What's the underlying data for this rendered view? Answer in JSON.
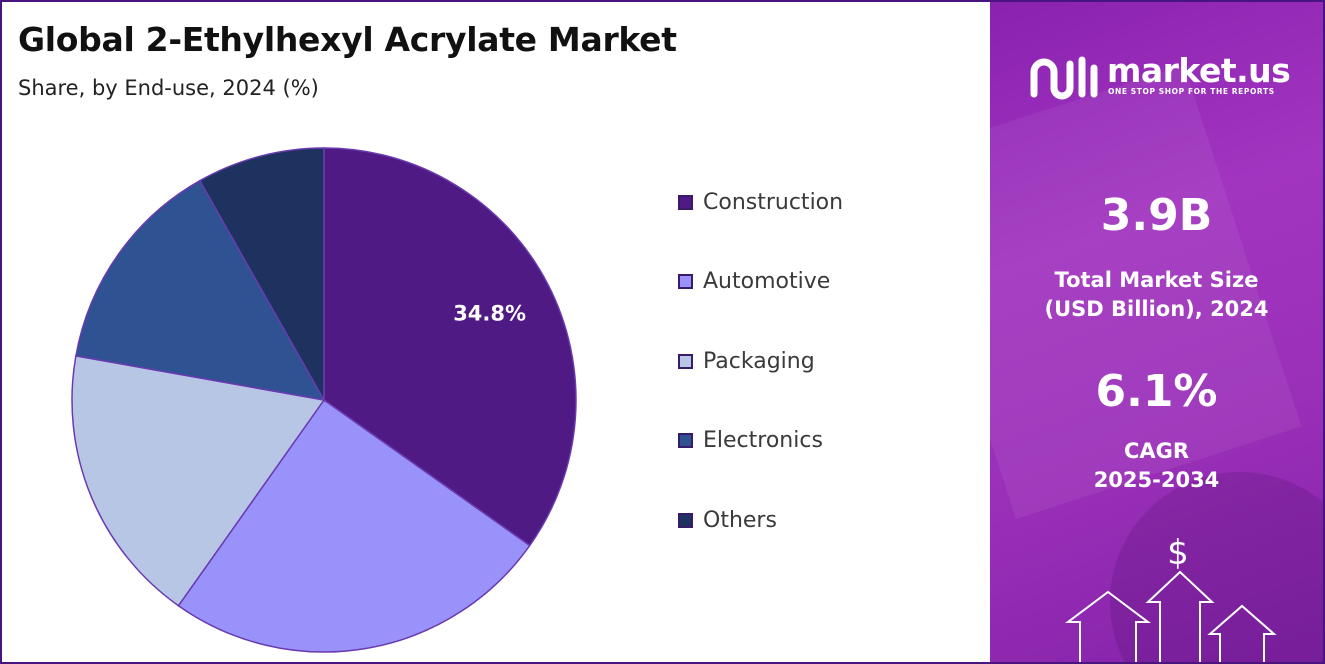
{
  "header": {
    "title": "Global 2-Ethylhexyl Acrylate Market",
    "subtitle": "Share, by End-use, 2024 (%)"
  },
  "chart_data": {
    "type": "pie",
    "categories": [
      "Construction",
      "Automotive",
      "Packaging",
      "Electronics",
      "Others"
    ],
    "values": [
      34.8,
      25.0,
      18.0,
      14.0,
      8.2
    ],
    "colors": [
      "#4f1a84",
      "#9a92fb",
      "#b8c6e6",
      "#2e5292",
      "#1e325f"
    ],
    "data_labels": [
      "34.8%",
      "",
      "",
      "",
      ""
    ],
    "legend_position": "right"
  },
  "brand": {
    "name": "market.us",
    "tagline": "ONE STOP SHOP FOR THE REPORTS"
  },
  "stats": {
    "market_size_value": "3.9B",
    "market_size_label_line1": "Total Market Size",
    "market_size_label_line2": "(USD Billion), 2024",
    "cagr_value": "6.1%",
    "cagr_label_line1": "CAGR",
    "cagr_label_line2": "2025-2034",
    "currency_symbol": "$"
  }
}
